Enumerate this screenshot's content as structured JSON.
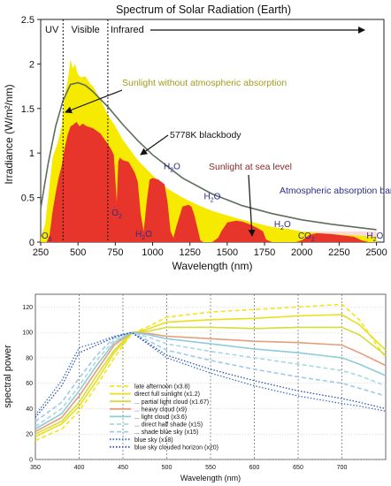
{
  "colors": {
    "yellow": "#f5ea00",
    "red": "#e8352c",
    "blackbody": "#5e6e5e",
    "olive_text": "#a39b1b",
    "maroon_text": "#8a2a2a",
    "navy_text": "#2c2c8c",
    "pink_band": "#f4b6b6"
  },
  "chart_data": [
    {
      "type": "area",
      "title": "Spectrum of Solar Radiation (Earth)",
      "xlabel": "Wavelength (nm)",
      "ylabel": "Irradiance (W/m²/nm)",
      "xlim": [
        250,
        2550
      ],
      "ylim": [
        0,
        2.5
      ],
      "x_ticks": [
        "250",
        "500",
        "750",
        "1000",
        "1250",
        "1500",
        "1750",
        "2000",
        "2250",
        "2500"
      ],
      "y_ticks": [
        "0",
        "0.5",
        "1",
        "1.5",
        "2",
        "2.5"
      ],
      "bands": [
        "UV",
        "Visible",
        "Infrared"
      ],
      "band_boundaries": [
        400,
        700
      ],
      "annotations": {
        "top_of_atmosphere": "Sunlight without atmospheric absorption",
        "blackbody": "5778K blackbody",
        "sea_level": "Sunlight at sea level",
        "absorption": "Atmospheric absorption bands"
      },
      "absorption_labels": [
        {
          "text": "O",
          "sub": "3",
          "x": 290,
          "y": 0.04
        },
        {
          "text": "O",
          "sub": "2",
          "x": 760,
          "y": 0.3
        },
        {
          "text": "H",
          "sub": "2",
          "tail": "O",
          "x": 940,
          "y": 0.06
        },
        {
          "text": "H",
          "sub": "2",
          "tail": "O",
          "x": 1130,
          "y": 0.82
        },
        {
          "text": "H",
          "sub": "2",
          "tail": "O",
          "x": 1400,
          "y": 0.48
        },
        {
          "text": "H",
          "sub": "2",
          "tail": "O",
          "x": 1870,
          "y": 0.17
        },
        {
          "text": "CO",
          "sub": "2",
          "tail": "",
          "x": 2030,
          "y": 0.04
        },
        {
          "text": "H",
          "sub": "2",
          "tail": "O",
          "x": 2490,
          "y": 0.04
        }
      ],
      "series": [
        {
          "name": "Sunlight without atmospheric absorption",
          "x": [
            250,
            280,
            300,
            330,
            350,
            370,
            390,
            410,
            430,
            450,
            465,
            480,
            500,
            520,
            550,
            580,
            600,
            650,
            700,
            750,
            800,
            900,
            1000,
            1100,
            1200,
            1300,
            1400,
            1500,
            1600,
            1700,
            1800,
            1900,
            2000,
            2200,
            2400,
            2500
          ],
          "values": [
            0.05,
            0.2,
            0.5,
            0.95,
            1.05,
            1.15,
            1.3,
            1.65,
            1.8,
            2.05,
            1.95,
            2.0,
            1.88,
            1.85,
            1.86,
            1.78,
            1.75,
            1.6,
            1.43,
            1.3,
            1.15,
            0.92,
            0.75,
            0.6,
            0.5,
            0.42,
            0.35,
            0.3,
            0.25,
            0.21,
            0.17,
            0.15,
            0.12,
            0.09,
            0.07,
            0.06
          ]
        },
        {
          "name": "Sunlight at sea level",
          "x": [
            250,
            290,
            310,
            330,
            350,
            370,
            390,
            410,
            430,
            450,
            470,
            490,
            510,
            530,
            560,
            600,
            650,
            680,
            700,
            720,
            740,
            760,
            770,
            780,
            800,
            840,
            880,
            900,
            920,
            940,
            960,
            980,
            1000,
            1040,
            1080,
            1100,
            1120,
            1140,
            1160,
            1200,
            1240,
            1260,
            1280,
            1320,
            1340,
            1360,
            1400,
            1440,
            1460,
            1500,
            1560,
            1600,
            1650,
            1700,
            1740,
            1760,
            1800,
            1960,
            2000,
            2050,
            2100,
            2200,
            2300,
            2350,
            2400,
            2450,
            2500
          ],
          "values": [
            0,
            0,
            0.08,
            0.35,
            0.55,
            0.72,
            0.85,
            1.05,
            1.2,
            1.3,
            1.32,
            1.35,
            1.3,
            1.33,
            1.3,
            1.28,
            1.22,
            1.15,
            1.1,
            1.05,
            0.98,
            0.45,
            0.9,
            0.95,
            0.92,
            0.9,
            0.78,
            0.68,
            0.32,
            0.12,
            0.45,
            0.7,
            0.72,
            0.7,
            0.65,
            0.45,
            0.12,
            0.05,
            0.18,
            0.4,
            0.42,
            0.4,
            0.3,
            0.02,
            0,
            0,
            0,
            0.05,
            0.12,
            0.22,
            0.24,
            0.23,
            0.2,
            0.16,
            0.12,
            0.03,
            0,
            0,
            0.02,
            0.08,
            0.1,
            0.09,
            0.07,
            0.06,
            0.02,
            0,
            0
          ]
        },
        {
          "name": "5778K blackbody",
          "x": [
            250,
            300,
            350,
            400,
            450,
            500,
            550,
            600,
            700,
            800,
            900,
            1000,
            1200,
            1400,
            1600,
            1800,
            2000,
            2200,
            2400,
            2500
          ],
          "values": [
            0.38,
            0.88,
            1.3,
            1.59,
            1.77,
            1.79,
            1.76,
            1.69,
            1.52,
            1.32,
            1.14,
            0.98,
            0.72,
            0.54,
            0.41,
            0.32,
            0.25,
            0.2,
            0.16,
            0.14
          ]
        }
      ]
    },
    {
      "type": "line",
      "xlabel": "Wavelength (nm)",
      "ylabel": "spectral power",
      "xlim": [
        350,
        750
      ],
      "ylim": [
        0,
        130
      ],
      "x_ticks": [
        "350",
        "400",
        "450",
        "500",
        "550",
        "600",
        "650",
        "700"
      ],
      "y_ticks": [
        "0",
        "20",
        "40",
        "60",
        "80",
        "100",
        "120"
      ],
      "legend_position": "bottom-left",
      "series": [
        {
          "name": "late afternoon (x3.8)",
          "color": "#f5e51a",
          "dash": "dash",
          "x": [
            350,
            380,
            400,
            420,
            440,
            460,
            480,
            500,
            550,
            600,
            650,
            700,
            720,
            750
          ],
          "values": [
            15,
            24,
            38,
            58,
            80,
            99,
            105,
            112,
            116,
            118,
            120,
            122,
            110,
            80
          ]
        },
        {
          "name": "direct full sunlight (x1.2)",
          "color": "#e9df1a",
          "dash": "solid",
          "x": [
            350,
            380,
            400,
            420,
            440,
            460,
            480,
            500,
            550,
            600,
            650,
            700,
            720,
            750
          ],
          "values": [
            18,
            28,
            42,
            62,
            84,
            99,
            103,
            108,
            110,
            111,
            113,
            114,
            106,
            86
          ]
        },
        {
          "name": "... partial light cloud (x1.67)",
          "color": "#d4dd3a",
          "dash": "solid",
          "x": [
            350,
            380,
            400,
            420,
            440,
            460,
            480,
            500,
            550,
            600,
            650,
            700,
            720,
            750
          ],
          "values": [
            20,
            30,
            45,
            66,
            86,
            100,
            101,
            104,
            104,
            103,
            104,
            104,
            98,
            82
          ]
        },
        {
          "name": "... heavy cloud (x9)",
          "color": "#e79c7c",
          "dash": "solid",
          "x": [
            350,
            380,
            400,
            420,
            440,
            460,
            480,
            500,
            550,
            600,
            650,
            700,
            720,
            750
          ],
          "values": [
            22,
            33,
            50,
            70,
            90,
            100,
            99,
            97,
            95,
            93,
            92,
            90,
            84,
            74
          ]
        },
        {
          "name": "... light cloud (x3.6)",
          "color": "#8fcbd8",
          "dash": "solid",
          "x": [
            350,
            380,
            400,
            420,
            440,
            460,
            480,
            500,
            550,
            600,
            650,
            700,
            720,
            750
          ],
          "values": [
            24,
            36,
            54,
            74,
            92,
            100,
            98,
            95,
            91,
            87,
            84,
            80,
            75,
            66
          ]
        },
        {
          "name": "... direct half shade (x15)",
          "color": "#a9d7e3",
          "dash": "dash",
          "x": [
            350,
            380,
            400,
            420,
            440,
            460,
            480,
            500,
            550,
            600,
            650,
            700,
            720,
            750
          ],
          "values": [
            26,
            40,
            58,
            78,
            94,
            100,
            96,
            91,
            85,
            80,
            75,
            70,
            66,
            58
          ]
        },
        {
          "name": "... shade blue sky (x15)",
          "color": "#9fc9e8",
          "dash": "dash",
          "x": [
            350,
            380,
            400,
            420,
            440,
            460,
            480,
            500,
            550,
            600,
            650,
            700,
            720,
            750
          ],
          "values": [
            30,
            45,
            64,
            82,
            96,
            100,
            93,
            86,
            78,
            71,
            65,
            60,
            56,
            50
          ]
        },
        {
          "name": "blue sky (x18)",
          "color": "#3a6fbf",
          "dash": "dot",
          "x": [
            350,
            380,
            400,
            420,
            440,
            460,
            480,
            500,
            550,
            600,
            650,
            700,
            720,
            750
          ],
          "values": [
            35,
            62,
            88,
            92,
            97,
            100,
            90,
            80,
            68,
            58,
            50,
            44,
            42,
            38
          ]
        },
        {
          "name": "blue sky clouded horizon (x20)",
          "color": "#2d4fae",
          "dash": "dot",
          "x": [
            350,
            380,
            400,
            420,
            440,
            460,
            480,
            500,
            550,
            600,
            650,
            700,
            720,
            750
          ],
          "values": [
            33,
            58,
            84,
            90,
            96,
            100,
            91,
            82,
            71,
            62,
            54,
            48,
            45,
            40
          ]
        }
      ]
    }
  ]
}
